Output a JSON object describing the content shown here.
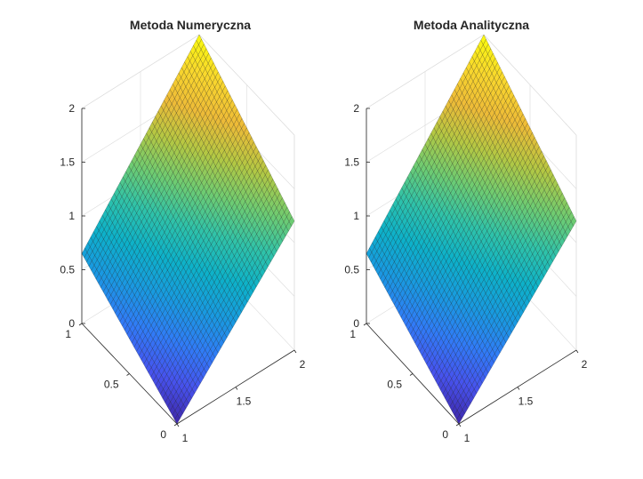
{
  "colors": {
    "background": "#ffffff",
    "colormap": "parula",
    "mesh_edge": "#000000",
    "grid": "#dcdcdc",
    "text": "#262626"
  },
  "chart_data": [
    {
      "type": "surface",
      "title": "Metoda Numeryczna",
      "xlabel": "",
      "ylabel": "",
      "zlabel": "",
      "x_range": [
        1,
        2
      ],
      "y_range": [
        0,
        1
      ],
      "zlim": [
        0,
        2
      ],
      "x_ticks": [
        "1",
        "1.5",
        "2"
      ],
      "y_ticks": [
        "0",
        "0.5",
        "1"
      ],
      "z_ticks": [
        "0",
        "0.5",
        "1",
        "1.5",
        "2"
      ],
      "grid_points": 41,
      "corner_values": [
        {
          "x": 1,
          "y": 0,
          "z": 0
        },
        {
          "x": 2,
          "y": 0,
          "z": 1.2
        },
        {
          "x": 1,
          "y": 1,
          "z": 0.65
        },
        {
          "x": 2,
          "y": 1,
          "z": 2
        }
      ],
      "grid": true
    },
    {
      "type": "surface",
      "title": "Metoda Analityczna",
      "xlabel": "",
      "ylabel": "",
      "zlabel": "",
      "x_range": [
        1,
        2
      ],
      "y_range": [
        0,
        1
      ],
      "zlim": [
        0,
        2
      ],
      "x_ticks": [
        "1",
        "1.5",
        "2"
      ],
      "y_ticks": [
        "0",
        "0.5",
        "1"
      ],
      "z_ticks": [
        "0",
        "0.5",
        "1",
        "1.5",
        "2"
      ],
      "grid_points": 41,
      "corner_values": [
        {
          "x": 1,
          "y": 0,
          "z": 0
        },
        {
          "x": 2,
          "y": 0,
          "z": 1.2
        },
        {
          "x": 1,
          "y": 1,
          "z": 0.65
        },
        {
          "x": 2,
          "y": 1,
          "z": 2
        }
      ],
      "grid": true
    }
  ]
}
